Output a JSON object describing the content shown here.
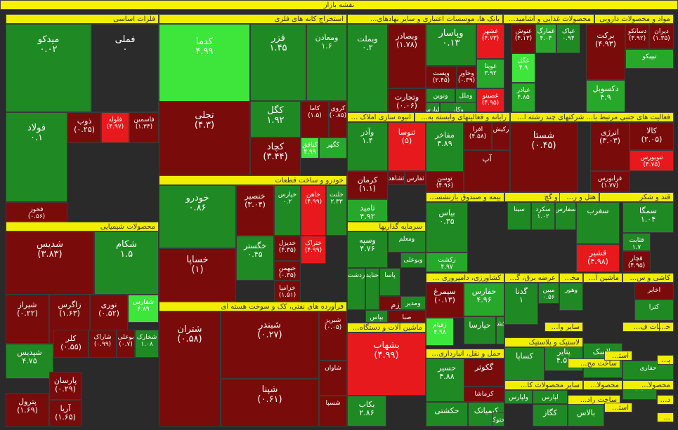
{
  "colors": {
    "dark_red": "#7a0b0b",
    "red": "#b0120f",
    "bright_red": "#e8191c",
    "dark_green": "#1f8a23",
    "green": "#27a82a",
    "bright_green": "#3ee63b",
    "neutral": "#2b2b2b",
    "header": "#f2ee00"
  },
  "chart_data": {
    "type": "treemap",
    "title": "نقشه بازار",
    "sectors": [
      {
        "label": "فلزات اساسی"
      },
      {
        "label": "استخراج کانه های فلزی"
      },
      {
        "label": "بانک ها، موسسات اعتباری و سایر نهادهای..."
      },
      {
        "label": "محصولات غذایی و آشامیدنی بجز ..."
      },
      {
        "label": "مواد و محصولات دارویی"
      },
      {
        "label": "فعالیت های جنبی مرتبط با... شرکتهای چند رشته ای ص..."
      },
      {
        "label": "رایانه و فعالیتهای وابسته به..."
      },
      {
        "label": "انبوه سازی املاک و مس..."
      },
      {
        "label": "محصولات شیمیایی"
      },
      {
        "label": "خودرو و ساخت قطعات"
      },
      {
        "label": "بیمه و صندوق بازنشستگ..."
      },
      {
        "label": "سیمان، آهک و گچ"
      },
      {
        "label": "هتل و رستوران"
      },
      {
        "label": "قند و شکر"
      },
      {
        "label": "سرمایه گذاریها"
      },
      {
        "label": "فرآورده های نفتی، کک و سوخت هسته ای"
      },
      {
        "label": "کاشی و س..."
      },
      {
        "label": "ماشین آلا..."
      },
      {
        "label": "مخابرات"
      },
      {
        "label": "عرضه برق، گاز، بخا..."
      },
      {
        "label": "کشاورزی، دامپروری و خ..."
      },
      {
        "label": "ماشین آلات و دستگاه ها..."
      },
      {
        "label": "سایر واسط..."
      },
      {
        "label": "خدمات ف..."
      },
      {
        "label": "خرده ف..."
      },
      {
        "label": "حمل و نقل، انبارداری و ا..."
      },
      {
        "label": "لاستیک و پلاستیک"
      },
      {
        "label": "ساخت مح..."
      },
      {
        "label": "استخراج..."
      },
      {
        "label": "پیمانکار..."
      },
      {
        "label": "محصولا..."
      },
      {
        "label": "محصولا..."
      },
      {
        "label": "سایر محصولات کا..."
      },
      {
        "label": "ساخت راد..."
      },
      {
        "label": "استخراج..."
      },
      {
        "label": "دباغی..."
      },
      {
        "label": "..."
      }
    ],
    "tiles": [
      {
        "symbol": "میدکو",
        "value": "۰.۰۲",
        "color": "dark_green"
      },
      {
        "symbol": "فملی",
        "value": "۰",
        "color": "neutral"
      },
      {
        "symbol": "فولاد",
        "value": "۰.۱",
        "color": "dark_green"
      },
      {
        "symbol": "ذوب",
        "value": "(۰.۲۵)",
        "color": "dark_red"
      },
      {
        "symbol": "فلوله",
        "value": "(۴.۹۷)",
        "color": "bright_red"
      },
      {
        "symbol": "فاسمین",
        "value": "(۱.۳۳)",
        "color": "dark_red"
      },
      {
        "symbol": "فخوز",
        "value": "(۰.۵۶)",
        "color": "dark_red"
      },
      {
        "symbol": "کدما",
        "value": "۴.۹۹",
        "color": "bright_green"
      },
      {
        "symbol": "فزر",
        "value": "۱.۴۵",
        "color": "dark_green"
      },
      {
        "symbol": "ومعادن",
        "value": "۱.۶",
        "color": "dark_green"
      },
      {
        "symbol": "کگل",
        "value": "۱.۹۲",
        "color": "dark_green"
      },
      {
        "symbol": "کاما",
        "value": "(۱.۵)",
        "color": "dark_red"
      },
      {
        "symbol": "کروی",
        "value": "(۰.۸۵)",
        "color": "dark_red"
      },
      {
        "symbol": "تجلی",
        "value": "(۴.۳)",
        "color": "dark_red"
      },
      {
        "symbol": "کچاد",
        "value": "(۳.۴۴)",
        "color": "dark_red"
      },
      {
        "symbol": "کگهر",
        "value": "",
        "color": "green"
      },
      {
        "symbol": "کیافق",
        "value": "۴.۹۹",
        "color": "bright_green"
      },
      {
        "symbol": "وبملت",
        "value": "۰.۲",
        "color": "dark_green"
      },
      {
        "symbol": "وبصادر",
        "value": "(۱.۷۸)",
        "color": "dark_red"
      },
      {
        "symbol": "وپاسار",
        "value": "۰.۱۳",
        "color": "dark_green"
      },
      {
        "symbol": "وتجارت",
        "value": "(۰.۰۶)",
        "color": "dark_red"
      },
      {
        "symbol": "وخاور",
        "value": "(۰.۳۹)",
        "color": "dark_red"
      },
      {
        "symbol": "وپست",
        "value": "(۲.۴۵)",
        "color": "dark_red"
      },
      {
        "symbol": "وملل",
        "value": "",
        "color": "dark_green"
      },
      {
        "symbol": "ونوین",
        "value": "",
        "color": "dark_green"
      },
      {
        "symbol": "ولپارس",
        "value": "",
        "color": "dark_green"
      },
      {
        "symbol": "وکار",
        "value": "",
        "color": "dark_green"
      },
      {
        "symbol": "غشهر",
        "value": "(۴.۷۳)",
        "color": "bright_red"
      },
      {
        "symbol": "غویتا",
        "value": "۳.۹۲",
        "color": "green"
      },
      {
        "symbol": "غصینو",
        "value": "(۴.۹۵)",
        "color": "bright_red"
      },
      {
        "symbol": "غنوش",
        "value": "(۴.۱۳)",
        "color": "dark_red"
      },
      {
        "symbol": "غمارگ",
        "value": "۴.۰۴",
        "color": "green"
      },
      {
        "symbol": "غپاک",
        "value": "۰.۹۴",
        "color": "dark_green"
      },
      {
        "symbol": "غگل",
        "value": "۴.۹",
        "color": "bright_green"
      },
      {
        "symbol": "غپاذر",
        "value": "۴.۸۵",
        "color": "green"
      },
      {
        "symbol": "برکت",
        "value": "(۴.۹۳)",
        "color": "dark_red"
      },
      {
        "symbol": "دسانکو",
        "value": "(۴.۹۲)",
        "color": "dark_red"
      },
      {
        "symbol": "دیران",
        "value": "(۱.۳۵)",
        "color": "dark_red"
      },
      {
        "symbol": "تیپیکو",
        "value": "",
        "color": "green"
      },
      {
        "symbol": "دکسوبل",
        "value": "۴.۹",
        "color": "green"
      },
      {
        "symbol": "شستا",
        "value": "(۰.۴۵)",
        "color": "dark_red"
      },
      {
        "symbol": "انرژی",
        "value": "(۳.۰۳)",
        "color": "dark_red"
      },
      {
        "symbol": "کالا",
        "value": "(۲.۰۵)",
        "color": "dark_red"
      },
      {
        "symbol": "فرابورس",
        "value": "(۱.۷۷)",
        "color": "dark_red"
      },
      {
        "symbol": "تنوبورس",
        "value": "(۴.۷۵)",
        "color": "bright_red"
      },
      {
        "symbol": "ثنوسا",
        "value": "(۵)",
        "color": "bright_red"
      },
      {
        "symbol": "وآذر",
        "value": "۱.۴",
        "color": "dark_green"
      },
      {
        "symbol": "مفاخر",
        "value": "۴.۸۹",
        "color": "dark_green"
      },
      {
        "symbol": "افرا",
        "value": "(۴.۵۸)",
        "color": "dark_red"
      },
      {
        "symbol": "رکیش",
        "value": "",
        "color": "dark_red"
      },
      {
        "symbol": "آپ",
        "value": "",
        "color": "dark_red"
      },
      {
        "symbol": "کرمان",
        "value": "(۱.۱)",
        "color": "dark_red"
      },
      {
        "symbol": "ثشاهد",
        "value": "(۰.۹۶)",
        "color": "dark_red"
      },
      {
        "symbol": "ثفارس",
        "value": "",
        "color": "dark_red"
      },
      {
        "symbol": "توسن",
        "value": "(۴.۹۶)",
        "color": "dark_red"
      },
      {
        "symbol": "ثامید",
        "value": "۴.۹۲",
        "color": "green"
      },
      {
        "symbol": "شدیس",
        "value": "(۳.۸۳)",
        "color": "dark_red"
      },
      {
        "symbol": "شکام",
        "value": "۱.۵",
        "color": "dark_green"
      },
      {
        "symbol": "شیراز",
        "value": "(۰.۲۲)",
        "color": "dark_red"
      },
      {
        "symbol": "زاگرس",
        "value": "(۱.۶۳)",
        "color": "dark_red"
      },
      {
        "symbol": "نوری",
        "value": "(۰.۵۲)",
        "color": "dark_red"
      },
      {
        "symbol": "شفارس",
        "value": "۴.۸۹",
        "color": "bright_green"
      },
      {
        "symbol": "شپدیس",
        "value": "۴.۷۵",
        "color": "dark_green"
      },
      {
        "symbol": "کلر",
        "value": "(۰.۵۵)",
        "color": "dark_red"
      },
      {
        "symbol": "شاراک",
        "value": "(۰.۹۹)",
        "color": "dark_red"
      },
      {
        "symbol": "بوعلی",
        "value": "(۰.۷)",
        "color": "dark_red"
      },
      {
        "symbol": "شخارک",
        "value": "۱.۰۸",
        "color": "dark_green"
      },
      {
        "symbol": "پارسان",
        "value": "(۰.۲۹)",
        "color": "dark_red"
      },
      {
        "symbol": "پترول",
        "value": "(۱.۶۹)",
        "color": "dark_red"
      },
      {
        "symbol": "آریا",
        "value": "(۱.۶۵)",
        "color": "dark_red"
      },
      {
        "symbol": "خودرو",
        "value": "۰.۸۶",
        "color": "dark_green"
      },
      {
        "symbol": "خساپا",
        "value": "(۱)",
        "color": "dark_red"
      },
      {
        "symbol": "خنصیر",
        "value": "(۳.۰۴)",
        "color": "dark_red"
      },
      {
        "symbol": "خپارس",
        "value": "۰.۲",
        "color": "dark_green"
      },
      {
        "symbol": "خاهن",
        "value": "(۴.۹۹)",
        "color": "bright_red"
      },
      {
        "symbol": "خلنت",
        "value": "۲.۳۳",
        "color": "dark_green"
      },
      {
        "symbol": "خگستر",
        "value": "۰.۴۵",
        "color": "dark_green"
      },
      {
        "symbol": "خدیزل",
        "value": "(۴.۳۵)",
        "color": "dark_red"
      },
      {
        "symbol": "خبهمن",
        "value": "(۰.۳۵)",
        "color": "dark_red"
      },
      {
        "symbol": "ختراک",
        "value": "(۴.۹۹)",
        "color": "bright_red"
      },
      {
        "symbol": "خزامیا",
        "value": "(۱.۵۱)",
        "color": "dark_red"
      },
      {
        "symbol": "شتران",
        "value": "(۰.۵۸)",
        "color": "dark_red"
      },
      {
        "symbol": "شبندر",
        "value": "(۰.۲۷)",
        "color": "dark_red"
      },
      {
        "symbol": "شبریز",
        "value": "(۰.۰۵)",
        "color": "dark_red"
      },
      {
        "symbol": "شپنا",
        "value": "(۰.۶۱)",
        "color": "dark_red"
      },
      {
        "symbol": "شاوان",
        "value": "",
        "color": "dark_red"
      },
      {
        "symbol": "شسپا",
        "value": "",
        "color": "dark_red"
      },
      {
        "symbol": "بشهاب",
        "value": "(۴.۹۹)",
        "color": "bright_red"
      },
      {
        "symbol": "بکاب",
        "value": "۲.۸۶",
        "color": "dark_green"
      },
      {
        "symbol": "بیاس",
        "value": "۰.۳۵",
        "color": "dark_green"
      },
      {
        "symbol": "سیمرغ",
        "value": "(۰.۱۳)",
        "color": "dark_red"
      },
      {
        "symbol": "زقیام",
        "value": "۴.۹۸",
        "color": "bright_green"
      },
      {
        "symbol": "حسیر",
        "value": "۴.۸۸",
        "color": "dark_green"
      },
      {
        "symbol": "حکشتی",
        "value": "",
        "color": "dark_green"
      },
      {
        "symbol": "سیتا",
        "value": "",
        "color": "dark_green"
      },
      {
        "symbol": "سکرد",
        "value": "۱.۰۲",
        "color": "dark_green"
      },
      {
        "symbol": "سفارس",
        "value": "",
        "color": "dark_green"
      },
      {
        "symbol": "سغرب",
        "value": "",
        "color": "dark_green"
      },
      {
        "symbol": "سمگا",
        "value": "۱.۰۴",
        "color": "dark_green"
      },
      {
        "symbol": "قثابت",
        "value": "۱.۷",
        "color": "dark_green"
      },
      {
        "symbol": "قچار",
        "value": "(۴.۹۵)",
        "color": "dark_red"
      },
      {
        "symbol": "قشیر",
        "value": "(۴.۹۸)",
        "color": "bright_red"
      },
      {
        "symbol": "گدنا",
        "value": "۱",
        "color": "dark_green"
      },
      {
        "symbol": "مبین",
        "value": "۰.۵۶",
        "color": "dark_green"
      },
      {
        "symbol": "وهور",
        "value": "",
        "color": "dark_green"
      },
      {
        "symbol": "اخابر",
        "value": "",
        "color": "dark_red"
      },
      {
        "symbol": "کترا",
        "value": "",
        "color": "dark_green"
      },
      {
        "symbol": "کساپا",
        "value": "",
        "color": "dark_green"
      },
      {
        "symbol": "پتاير",
        "value": "۴.۵۱",
        "color": "dark_green"
      },
      {
        "symbol": "پلاسک",
        "value": "",
        "color": "dark_green"
      },
      {
        "symbol": "حفاری",
        "value": "",
        "color": "dark_green"
      },
      {
        "symbol": "اپال",
        "value": "",
        "color": "dark_green"
      },
      {
        "symbol": "بالاس",
        "value": "",
        "color": "dark_green"
      },
      {
        "symbol": "ولپارس",
        "value": "",
        "color": "dark_green"
      },
      {
        "symbol": "لپارس",
        "value": "",
        "color": "dark_green"
      },
      {
        "symbol": "کگاز",
        "value": "",
        "color": "dark_green"
      },
      {
        "symbol": "گکوثر",
        "value": "",
        "color": "dark_red"
      },
      {
        "symbol": "کرماشا",
        "value": "",
        "color": "dark_red"
      },
      {
        "symbol": "کیمیاتک",
        "value": "",
        "color": "dark_green"
      },
      {
        "symbol": "حتوکا",
        "value": "۲.۹",
        "color": "dark_green"
      },
      {
        "symbol": "حفارس",
        "value": "۴.۹۶",
        "color": "green"
      },
      {
        "symbol": "حپارسا",
        "value": "",
        "color": "dark_green"
      },
      {
        "symbol": "حکشتی",
        "value": "",
        "color": "dark_green"
      },
      {
        "symbol": "زکشت",
        "value": "۴.۹۷",
        "color": "green"
      },
      {
        "symbol": "زدشت",
        "value": "",
        "color": "dark_green"
      },
      {
        "symbol": "حتاید",
        "value": "",
        "color": "dark_green"
      },
      {
        "symbol": "پاسا",
        "value": "",
        "color": "dark_green"
      },
      {
        "symbol": "وسپه",
        "value": "۴.۷۶",
        "color": "dark_green"
      },
      {
        "symbol": "ومعلم",
        "value": "",
        "color": "dark_green"
      },
      {
        "symbol": "وبوعلی",
        "value": "",
        "color": "dark_green"
      },
      {
        "symbol": "وخارزم",
        "value": "(۰.۷)",
        "color": "dark_red"
      },
      {
        "symbol": "صبا",
        "value": "(۰.۵۶)",
        "color": "dark_red"
      },
      {
        "symbol": "ومدیر",
        "value": "",
        "color": "dark_green"
      },
      {
        "symbol": "بپاس",
        "value": "۰.۳۵",
        "color": "dark_green"
      },
      {
        "symbol": "وغدیر",
        "value": "",
        "color": "dark_green"
      },
      {
        "symbol": "وبانک",
        "value": "",
        "color": "dark_green"
      }
    ]
  }
}
